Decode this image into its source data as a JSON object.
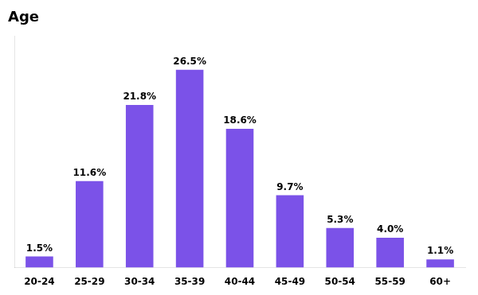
{
  "chart_data": {
    "type": "bar",
    "title": "Age",
    "categories": [
      "20-24",
      "25-29",
      "30-34",
      "35-39",
      "40-44",
      "45-49",
      "50-54",
      "55-59",
      "60+"
    ],
    "values": [
      1.5,
      11.6,
      21.8,
      26.5,
      18.6,
      9.7,
      5.3,
      4.0,
      1.1
    ],
    "value_labels": [
      "1.5%",
      "11.6%",
      "21.8%",
      "26.5%",
      "18.6%",
      "9.7%",
      "5.3%",
      "4.0%",
      "1.1%"
    ],
    "data_labels": true,
    "color": "#7B52E8",
    "ylim": [
      0,
      31
    ],
    "grid": false,
    "tick_labels": "x"
  }
}
